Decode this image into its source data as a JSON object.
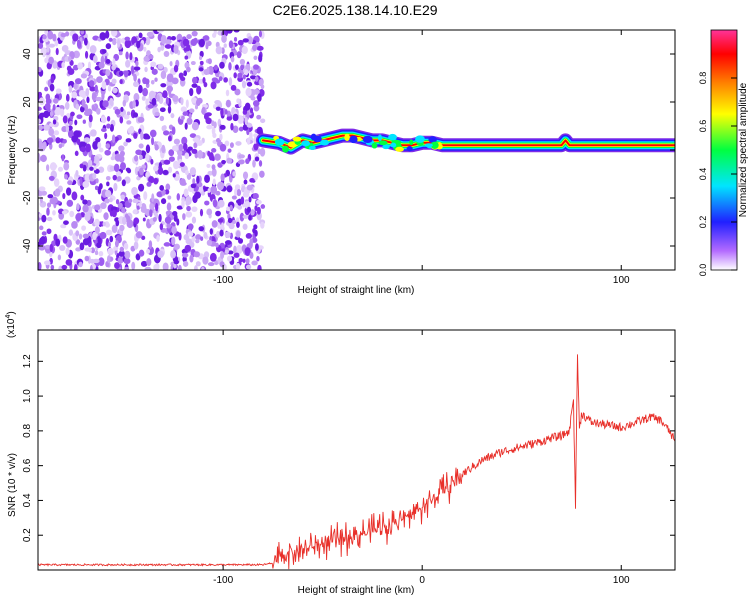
{
  "figure_title": "C2E6.2025.138.14.10.E29",
  "chart_data": [
    {
      "type": "heatmap",
      "title": "",
      "xlabel": "Height of straight line (km)",
      "ylabel": "Frequency (Hz)",
      "xlim": [
        -193,
        127
      ],
      "ylim": [
        -50,
        50
      ],
      "xticks": [
        -100,
        0,
        100
      ],
      "xtick_labels": [
        "-100",
        "",
        "100"
      ],
      "yticks": [
        -40,
        -20,
        0,
        20,
        40
      ],
      "colorbar": {
        "label": "Normalized spectral amplitude",
        "range": [
          0,
          1
        ],
        "ticks": [
          0.0,
          0.2,
          0.4,
          0.6,
          0.8
        ],
        "tick_labels": [
          "0.0",
          "0.2",
          "0.4",
          "0.6",
          "0.8"
        ],
        "colors": [
          "#ffffff",
          "#b36bff",
          "#2020ff",
          "#00e5ff",
          "#00ff40",
          "#ffff00",
          "#ff8000",
          "#ff0000",
          "#ff3399"
        ]
      },
      "noise_region": {
        "x_range": [
          -193,
          -80
        ],
        "y_range": [
          -50,
          50
        ]
      },
      "ridge": {
        "x": [
          -80,
          -72,
          -66,
          -60,
          -55,
          -50,
          -45,
          -40,
          -35,
          -30,
          -25,
          -20,
          -15,
          -10,
          -5,
          0,
          5,
          10,
          20,
          40,
          60,
          70,
          72,
          74,
          80,
          100,
          127
        ],
        "y": [
          4,
          3,
          1,
          4,
          3,
          4,
          5,
          6,
          6,
          5,
          4,
          4,
          3,
          2,
          2,
          3,
          3,
          2,
          2,
          2,
          2,
          2,
          4,
          2,
          2,
          2,
          2
        ]
      }
    },
    {
      "type": "line",
      "title": "",
      "xlabel": "Height of straight line (km)",
      "ylabel": "SNR (10 * v/v)",
      "y_multiplier": "(x10^4)",
      "xlim": [
        -193,
        127
      ],
      "ylim": [
        0,
        1.38
      ],
      "xticks": [
        -100,
        0,
        100
      ],
      "xtick_labels": [
        "-100",
        "0",
        "100"
      ],
      "yticks": [
        0.2,
        0.4,
        0.6,
        0.8,
        1.0,
        1.2
      ],
      "series": [
        {
          "color": "#e8302a",
          "x": [
            -193,
            -150,
            -100,
            -80,
            -75,
            -70,
            -60,
            -50,
            -40,
            -30,
            -20,
            -10,
            0,
            10,
            20,
            30,
            40,
            50,
            60,
            65,
            70,
            74,
            76,
            77,
            78,
            79,
            80,
            85,
            90,
            100,
            110,
            115,
            120,
            124,
            127
          ],
          "y": [
            0.03,
            0.03,
            0.03,
            0.03,
            0.04,
            0.09,
            0.12,
            0.15,
            0.18,
            0.21,
            0.25,
            0.29,
            0.36,
            0.45,
            0.55,
            0.63,
            0.68,
            0.71,
            0.74,
            0.76,
            0.77,
            0.8,
            1.0,
            0.35,
            1.25,
            0.8,
            0.9,
            0.85,
            0.84,
            0.82,
            0.86,
            0.88,
            0.86,
            0.8,
            0.74
          ]
        }
      ]
    }
  ]
}
